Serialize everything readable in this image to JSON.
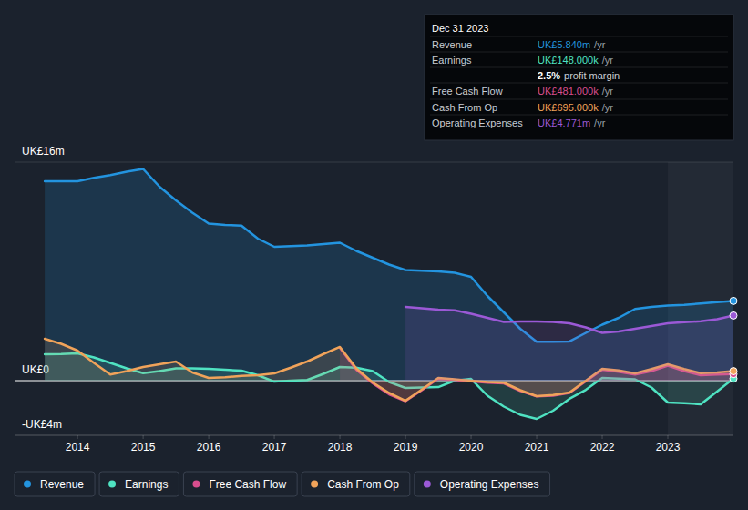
{
  "chart_data": {
    "type": "line",
    "x": [
      2013.5,
      2013.75,
      2014.0,
      2014.25,
      2014.5,
      2014.75,
      2015.0,
      2015.25,
      2015.5,
      2015.75,
      2016.0,
      2016.25,
      2016.5,
      2016.75,
      2017.0,
      2017.25,
      2017.5,
      2017.75,
      2018.0,
      2018.25,
      2018.5,
      2018.75,
      2019.0,
      2019.25,
      2019.5,
      2019.75,
      2020.0,
      2020.25,
      2020.5,
      2020.75,
      2021.0,
      2021.25,
      2021.5,
      2021.75,
      2022.0,
      2022.25,
      2022.5,
      2022.75,
      2023.0,
      2023.25,
      2023.5,
      2023.75,
      2024.0
    ],
    "xlim": [
      2013.04,
      2024.0
    ],
    "xticks": [
      2014,
      2015,
      2016,
      2017,
      2018,
      2019,
      2020,
      2021,
      2022,
      2023
    ],
    "ylim": [
      -4,
      16
    ],
    "yticks": [
      {
        "value": -4,
        "label": "-UK£4m"
      },
      {
        "value": 0,
        "label": "UK£0"
      },
      {
        "value": 16,
        "label": "UK£16m"
      }
    ],
    "grid": true,
    "legend": "bottom",
    "series": [
      {
        "name": "Revenue",
        "color": "#2394df",
        "values": [
          14.6,
          14.6,
          14.6,
          14.85,
          15.05,
          15.3,
          15.5,
          14.2,
          13.2,
          12.3,
          11.5,
          11.4,
          11.35,
          10.4,
          9.8,
          9.85,
          9.9,
          10.0,
          10.1,
          9.5,
          9.0,
          8.5,
          8.1,
          8.05,
          8.0,
          7.9,
          7.6,
          6.2,
          5.0,
          3.8,
          2.85,
          2.85,
          2.87,
          3.5,
          4.1,
          4.6,
          5.25,
          5.4,
          5.5,
          5.55,
          5.65,
          5.75,
          5.84
        ]
      },
      {
        "name": "Earnings",
        "color": "#4fe3c2",
        "values": [
          1.93,
          1.95,
          2.0,
          1.7,
          1.3,
          0.9,
          0.55,
          0.7,
          0.9,
          0.9,
          0.87,
          0.8,
          0.73,
          0.4,
          -0.07,
          0.0,
          0.05,
          0.5,
          1.0,
          0.95,
          0.7,
          -0.1,
          -0.53,
          -0.5,
          -0.47,
          0.0,
          0.13,
          -1.1,
          -1.9,
          -2.5,
          -2.8,
          -2.2,
          -1.33,
          -0.67,
          0.2,
          0.15,
          0.1,
          -0.5,
          -1.6,
          -1.65,
          -1.73,
          -0.8,
          0.148
        ]
      },
      {
        "name": "Free Cash Flow",
        "color": "#d94e8e",
        "values": [
          null,
          null,
          null,
          null,
          null,
          null,
          null,
          null,
          null,
          null,
          null,
          null,
          null,
          null,
          null,
          null,
          null,
          null,
          2.4,
          0.8,
          -0.2,
          -1.0,
          -1.5,
          -0.7,
          0.15,
          0.05,
          -0.05,
          -0.15,
          -0.2,
          -0.75,
          -1.15,
          -1.1,
          -0.9,
          -0.05,
          0.8,
          0.65,
          0.45,
          0.7,
          1.1,
          0.7,
          0.4,
          0.45,
          0.481
        ]
      },
      {
        "name": "Cash From Op",
        "color": "#f0a35a",
        "values": [
          3.07,
          2.7,
          2.2,
          1.3,
          0.45,
          0.7,
          1.0,
          1.2,
          1.4,
          0.6,
          0.2,
          0.25,
          0.35,
          0.4,
          0.53,
          0.95,
          1.4,
          1.95,
          2.47,
          0.9,
          -0.13,
          -0.9,
          -1.47,
          -0.65,
          0.2,
          0.1,
          0.0,
          -0.1,
          -0.15,
          -0.7,
          -1.13,
          -1.05,
          -0.87,
          0.0,
          0.87,
          0.75,
          0.53,
          0.85,
          1.2,
          0.85,
          0.55,
          0.6,
          0.695
        ]
      },
      {
        "name": "Operating Expenses",
        "color": "#9b59d6",
        "values": [
          null,
          null,
          null,
          null,
          null,
          null,
          null,
          null,
          null,
          null,
          null,
          null,
          null,
          null,
          null,
          null,
          null,
          null,
          null,
          null,
          null,
          null,
          5.4,
          5.3,
          5.2,
          5.15,
          4.9,
          4.6,
          4.3,
          4.33,
          4.33,
          4.3,
          4.2,
          3.9,
          3.5,
          3.6,
          3.8,
          4.0,
          4.2,
          4.28,
          4.35,
          4.5,
          4.771
        ]
      }
    ],
    "tooltip": {
      "title": "Dec 31 2023",
      "rows": [
        {
          "label": "Revenue",
          "value": "UK£5.840m",
          "unit": "/yr",
          "color": "#2394df"
        },
        {
          "label": "Earnings",
          "value": "UK£148.000k",
          "unit": "/yr",
          "color": "#4fe3c2"
        },
        {
          "value": "2.5%",
          "unit": "profit margin",
          "color": "#ffffff"
        },
        {
          "label": "Free Cash Flow",
          "value": "UK£481.000k",
          "unit": "/yr",
          "color": "#d94e8e"
        },
        {
          "label": "Cash From Op",
          "value": "UK£695.000k",
          "unit": "/yr",
          "color": "#f0a35a"
        },
        {
          "label": "Operating Expenses",
          "value": "UK£4.771m",
          "unit": "/yr",
          "color": "#9b59d6"
        }
      ]
    }
  }
}
